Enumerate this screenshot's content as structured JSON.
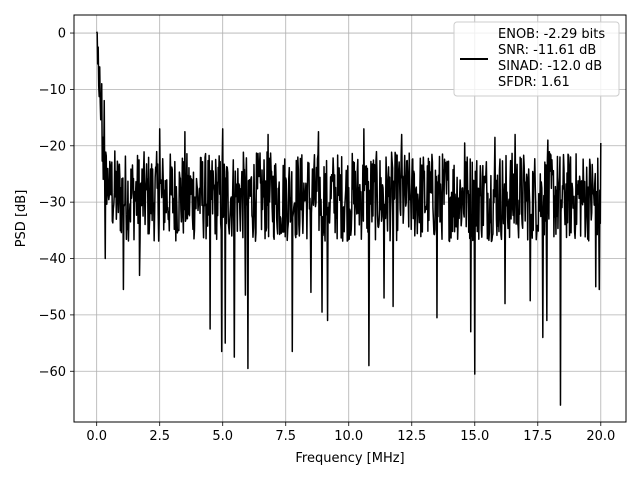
{
  "chart_data": {
    "type": "line",
    "title": "",
    "xlabel": "Frequency [MHz]",
    "ylabel": "PSD [dB]",
    "xlim": [
      -0.9,
      21.0
    ],
    "ylim": [
      -69,
      3.2
    ],
    "grid": true,
    "legend_placement": "top-right",
    "xticks": [
      0.0,
      2.5,
      5.0,
      7.5,
      10.0,
      12.5,
      15.0,
      17.5,
      20.0
    ],
    "xtick_labels": [
      "0.0",
      "2.5",
      "5.0",
      "7.5",
      "10.0",
      "12.5",
      "15.0",
      "17.5",
      "20.0"
    ],
    "yticks": [
      0,
      -10,
      -20,
      -30,
      -40,
      -50,
      -60
    ],
    "ytick_labels": [
      "0",
      "−10",
      "−20",
      "−30",
      "−40",
      "−50",
      "−60"
    ],
    "legend": {
      "lines": [
        "ENOB: -2.29 bits",
        "SNR: -11.61 dB",
        "SINAD: -12.0 dB",
        "SFDR: 1.61"
      ]
    },
    "series": [
      {
        "color": "#000000",
        "noise_floor_db": -29,
        "noise_band_db": [
          -37,
          -21
        ],
        "peak_db": -1.5,
        "x_range": [
          0,
          20
        ],
        "dips": [
          {
            "x": 0.35,
            "y": -40
          },
          {
            "x": 1.05,
            "y": -45.5
          },
          {
            "x": 1.7,
            "y": -43
          },
          {
            "x": 4.5,
            "y": -52.5
          },
          {
            "x": 4.95,
            "y": -56.5
          },
          {
            "x": 5.1,
            "y": -55
          },
          {
            "x": 5.45,
            "y": -57.5
          },
          {
            "x": 5.9,
            "y": -46.5
          },
          {
            "x": 6.0,
            "y": -59.5
          },
          {
            "x": 7.75,
            "y": -56.5
          },
          {
            "x": 8.5,
            "y": -46
          },
          {
            "x": 8.95,
            "y": -49.5
          },
          {
            "x": 9.15,
            "y": -51
          },
          {
            "x": 10.8,
            "y": -59
          },
          {
            "x": 11.4,
            "y": -47
          },
          {
            "x": 11.75,
            "y": -48.5
          },
          {
            "x": 13.5,
            "y": -50.5
          },
          {
            "x": 14.85,
            "y": -53
          },
          {
            "x": 15.0,
            "y": -60.5
          },
          {
            "x": 16.2,
            "y": -48
          },
          {
            "x": 17.2,
            "y": -47.5
          },
          {
            "x": 17.7,
            "y": -54
          },
          {
            "x": 17.85,
            "y": -51
          },
          {
            "x": 18.4,
            "y": -66
          },
          {
            "x": 19.8,
            "y": -45
          },
          {
            "x": 19.95,
            "y": -45.5
          }
        ],
        "spikes": [
          {
            "x": 0.02,
            "y": 0.0
          },
          {
            "x": 0.06,
            "y": -2.5
          },
          {
            "x": 0.12,
            "y": -6
          },
          {
            "x": 0.2,
            "y": -9
          },
          {
            "x": 0.3,
            "y": -12
          },
          {
            "x": 2.5,
            "y": -17
          },
          {
            "x": 3.5,
            "y": -17.5
          },
          {
            "x": 5.0,
            "y": -17
          },
          {
            "x": 6.8,
            "y": -18
          },
          {
            "x": 8.8,
            "y": -17.5
          },
          {
            "x": 10.6,
            "y": -17
          },
          {
            "x": 12.1,
            "y": -18
          },
          {
            "x": 14.6,
            "y": -19.5
          },
          {
            "x": 15.8,
            "y": -18.5
          },
          {
            "x": 16.6,
            "y": -18
          },
          {
            "x": 17.9,
            "y": -19
          },
          {
            "x": 20.0,
            "y": -19.5
          }
        ]
      }
    ]
  }
}
